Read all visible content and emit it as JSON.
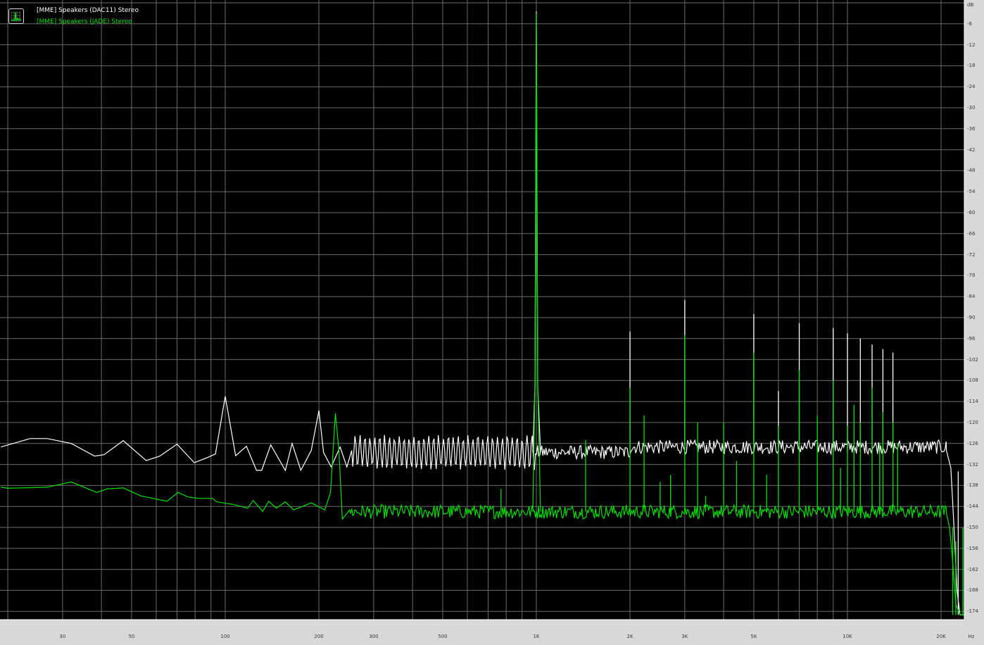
{
  "legend": {
    "icon": "spectrum-chart-icon",
    "items": [
      {
        "label": "[MME] Speakers (DAC11) Stereo",
        "color": "#ffffff"
      },
      {
        "label": "[MME] Speakers (JADE) Stereo",
        "color": "#00e000"
      }
    ]
  },
  "chart_data": {
    "type": "line",
    "xscale": "log",
    "xlim": [
      19,
      23700
    ],
    "ylim": [
      -176,
      0
    ],
    "grid": true,
    "legend_position": "top-left",
    "xunit": "Hz",
    "yunit": "dB",
    "xticks": [
      {
        "value": 30,
        "label": "30"
      },
      {
        "value": 50,
        "label": "50"
      },
      {
        "value": 100,
        "label": "100"
      },
      {
        "value": 200,
        "label": "200"
      },
      {
        "value": 300,
        "label": "300"
      },
      {
        "value": 500,
        "label": "500"
      },
      {
        "value": 1000,
        "label": "1K"
      },
      {
        "value": 2000,
        "label": "2K"
      },
      {
        "value": 3000,
        "label": "3K"
      },
      {
        "value": 5000,
        "label": "5K"
      },
      {
        "value": 10000,
        "label": "10K"
      },
      {
        "value": 20000,
        "label": "20K"
      }
    ],
    "yticks": [
      -6,
      -12,
      -18,
      -24,
      -30,
      -36,
      -42,
      -48,
      -54,
      -60,
      -66,
      -72,
      -78,
      -84,
      -90,
      -96,
      -102,
      -108,
      -114,
      -120,
      -126,
      -132,
      -138,
      -144,
      -150,
      -156,
      -162,
      -168,
      -174
    ],
    "series": [
      {
        "name": "[MME] Speakers (DAC11) Stereo",
        "color": "#ffffff",
        "points": [
          [
            19,
            -127
          ],
          [
            23.6,
            -124.6
          ],
          [
            26.8,
            -124.6
          ],
          [
            32,
            -126
          ],
          [
            38,
            -129.6
          ],
          [
            40.8,
            -129.2
          ],
          [
            47,
            -125.2
          ],
          [
            55.7,
            -130.9
          ],
          [
            61.6,
            -129.6
          ],
          [
            70,
            -126.2
          ],
          [
            79.5,
            -131.5
          ],
          [
            87.8,
            -130
          ],
          [
            93,
            -129
          ],
          [
            100,
            -112.5
          ],
          [
            108,
            -129.5
          ],
          [
            117,
            -126.8
          ],
          [
            126,
            -133.7
          ],
          [
            131,
            -133.7
          ],
          [
            140,
            -126.4
          ],
          [
            156,
            -133.7
          ],
          [
            164,
            -126
          ],
          [
            175,
            -133.7
          ],
          [
            189,
            -128
          ],
          [
            200,
            -116.6
          ],
          [
            207,
            -128.6
          ],
          [
            219,
            -132.7
          ],
          [
            234,
            -127
          ],
          [
            246,
            -132.7
          ],
          [
            255,
            -128
          ]
        ],
        "floor": {
          "from": 255,
          "to": 20800,
          "level_db": -128.5,
          "ripple_db": 4
        },
        "rolloff": [
          [
            20800,
            -128
          ],
          [
            21500,
            -133
          ],
          [
            22000,
            -150
          ],
          [
            22500,
            -168
          ],
          [
            23000,
            -175
          ],
          [
            23700,
            -175
          ]
        ],
        "peaks": [
          [
            1000,
            -2.5
          ],
          [
            2000,
            -94
          ],
          [
            3000,
            -85
          ],
          [
            5000,
            -89
          ],
          [
            6000,
            -111
          ],
          [
            7000,
            -91.6
          ],
          [
            9000,
            -93
          ],
          [
            10000,
            -94.5
          ],
          [
            11000,
            -96
          ],
          [
            12000,
            -97.7
          ],
          [
            13000,
            -99
          ],
          [
            14000,
            -100
          ],
          [
            22700,
            -134
          ]
        ]
      },
      {
        "name": "[MME] Speakers (JADE) Stereo",
        "color": "#00e000",
        "points": [
          [
            19,
            -138.5
          ],
          [
            20,
            -138.8
          ],
          [
            26.8,
            -138.5
          ],
          [
            32,
            -137
          ],
          [
            38.6,
            -140
          ],
          [
            41.7,
            -139
          ],
          [
            47,
            -138.7
          ],
          [
            53.6,
            -141
          ],
          [
            65,
            -142.5
          ],
          [
            70.5,
            -140
          ],
          [
            76,
            -141.3
          ],
          [
            82,
            -141.7
          ],
          [
            91,
            -141.7
          ],
          [
            94,
            -142.7
          ],
          [
            107,
            -143.5
          ],
          [
            118,
            -144.5
          ],
          [
            123,
            -142.3
          ],
          [
            132,
            -145.4
          ],
          [
            138,
            -142.5
          ],
          [
            146,
            -144.5
          ],
          [
            156,
            -142.7
          ],
          [
            166,
            -145
          ],
          [
            189,
            -143
          ],
          [
            209,
            -145
          ],
          [
            218,
            -140
          ],
          [
            226,
            -117.4
          ],
          [
            232,
            -128
          ],
          [
            238,
            -147.6
          ],
          [
            251,
            -145
          ]
        ],
        "floor": {
          "from": 251,
          "to": 20800,
          "level_db": -145.5,
          "ripple_db": 4
        },
        "rolloff": [
          [
            20800,
            -146
          ],
          [
            21300,
            -150
          ],
          [
            21800,
            -160
          ],
          [
            22300,
            -172
          ],
          [
            23000,
            -175
          ],
          [
            23700,
            -175
          ]
        ],
        "peaks": [
          [
            1000,
            -3
          ],
          [
            770,
            -139
          ],
          [
            1440,
            -125
          ],
          [
            2000,
            -110
          ],
          [
            2220,
            -118
          ],
          [
            2500,
            -137
          ],
          [
            2700,
            -135
          ],
          [
            3000,
            -95
          ],
          [
            3300,
            -120
          ],
          [
            3500,
            -141
          ],
          [
            4000,
            -120
          ],
          [
            4400,
            -131
          ],
          [
            5000,
            -100
          ],
          [
            5500,
            -135
          ],
          [
            6000,
            -121
          ],
          [
            7000,
            -105
          ],
          [
            8000,
            -118
          ],
          [
            9000,
            -108
          ],
          [
            9500,
            -133
          ],
          [
            10000,
            -121
          ],
          [
            10500,
            -115
          ],
          [
            11000,
            -120
          ],
          [
            12000,
            -110
          ],
          [
            12700,
            -126
          ],
          [
            13000,
            -117
          ],
          [
            14000,
            -120
          ],
          [
            14500,
            -126
          ],
          [
            21800,
            -150
          ],
          [
            22300,
            -154
          ],
          [
            23500,
            -150
          ]
        ]
      }
    ]
  }
}
